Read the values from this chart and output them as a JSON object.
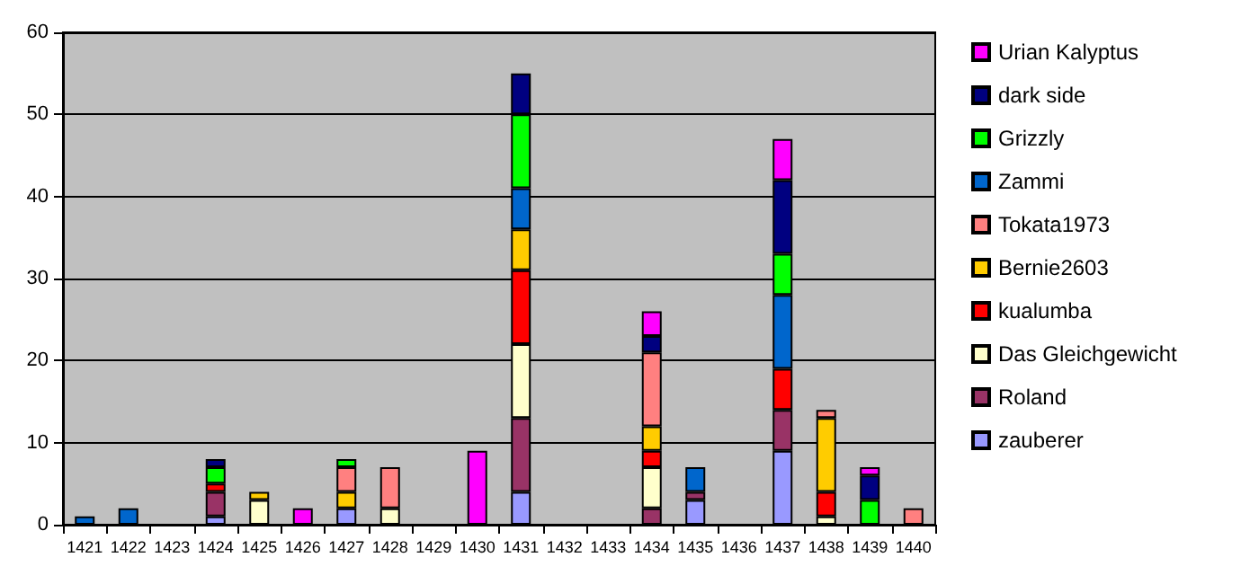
{
  "chart_data": {
    "type": "bar",
    "stacked": true,
    "categories": [
      "1421",
      "1422",
      "1423",
      "1424",
      "1425",
      "1426",
      "1427",
      "1428",
      "1429",
      "1430",
      "1431",
      "1432",
      "1433",
      "1434",
      "1435",
      "1436",
      "1437",
      "1438",
      "1439",
      "1440"
    ],
    "series": [
      {
        "name": "zauberer",
        "color": "#9999ff",
        "values": [
          null,
          null,
          null,
          1,
          null,
          null,
          2,
          null,
          null,
          null,
          4,
          null,
          null,
          null,
          3,
          null,
          9,
          null,
          null,
          null
        ]
      },
      {
        "name": "Roland",
        "color": "#993366",
        "values": [
          null,
          null,
          null,
          3,
          null,
          null,
          null,
          null,
          null,
          null,
          9,
          null,
          null,
          2,
          1,
          null,
          5,
          null,
          null,
          null
        ]
      },
      {
        "name": "Das Gleichgewicht",
        "color": "#ffffcc",
        "values": [
          null,
          null,
          null,
          null,
          3,
          null,
          null,
          2,
          null,
          null,
          9,
          null,
          null,
          5,
          null,
          null,
          null,
          1,
          null,
          null
        ]
      },
      {
        "name": "kualumba",
        "color": "#ff0000",
        "values": [
          null,
          null,
          null,
          1,
          null,
          null,
          null,
          null,
          null,
          null,
          9,
          null,
          null,
          2,
          null,
          null,
          5,
          3,
          null,
          null
        ]
      },
      {
        "name": "Bernie2603",
        "color": "#ffcc00",
        "values": [
          null,
          null,
          null,
          null,
          1,
          null,
          2,
          null,
          null,
          null,
          5,
          null,
          null,
          3,
          null,
          null,
          null,
          9,
          null,
          null
        ]
      },
      {
        "name": "Tokata1973",
        "color": "#ff8080",
        "values": [
          null,
          null,
          null,
          null,
          null,
          null,
          3,
          5,
          null,
          null,
          null,
          null,
          null,
          9,
          null,
          null,
          null,
          1,
          null,
          2
        ]
      },
      {
        "name": "Zammi",
        "color": "#0066cc",
        "values": [
          1,
          2,
          null,
          null,
          null,
          null,
          null,
          null,
          null,
          null,
          5,
          null,
          null,
          null,
          3,
          null,
          9,
          null,
          null,
          null
        ]
      },
      {
        "name": "Grizzly",
        "color": "#00ff00",
        "values": [
          null,
          null,
          null,
          2,
          null,
          null,
          1,
          null,
          null,
          null,
          9,
          null,
          null,
          null,
          null,
          null,
          5,
          null,
          3,
          null
        ]
      },
      {
        "name": "dark side",
        "color": "#000080",
        "values": [
          null,
          null,
          null,
          1,
          null,
          null,
          null,
          null,
          null,
          null,
          5,
          null,
          null,
          2,
          null,
          null,
          9,
          null,
          3,
          null
        ]
      },
      {
        "name": "Urian Kalyptus",
        "color": "#ff00ff",
        "values": [
          null,
          null,
          null,
          null,
          null,
          2,
          null,
          null,
          null,
          9,
          null,
          null,
          null,
          3,
          null,
          null,
          5,
          null,
          1,
          null
        ]
      }
    ],
    "ylim": [
      0,
      60
    ],
    "yticks": [
      0,
      10,
      20,
      30,
      40,
      50,
      60
    ],
    "grid": "y",
    "legend": "right"
  }
}
